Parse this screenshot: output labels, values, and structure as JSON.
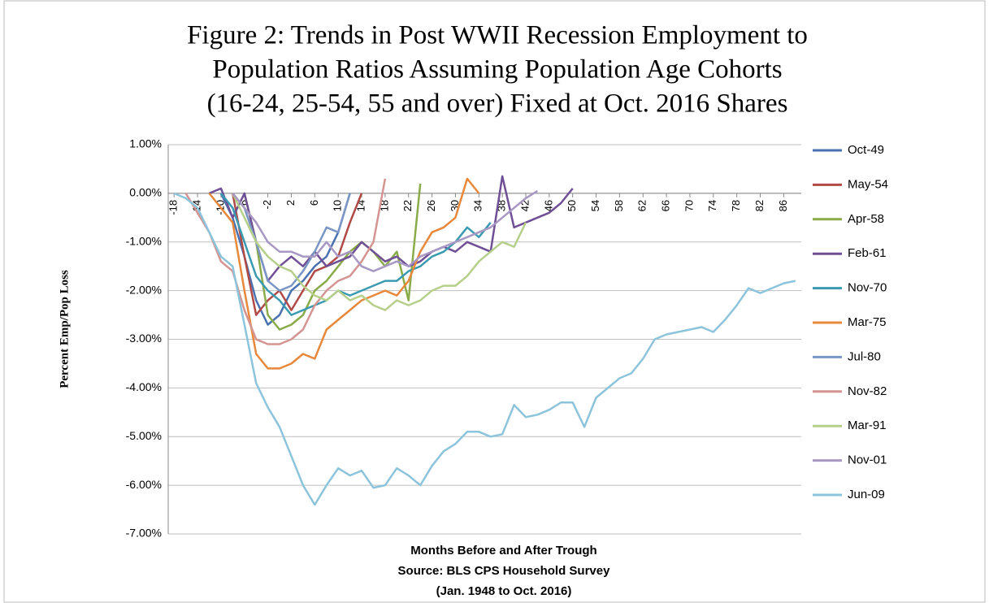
{
  "chart_data": {
    "type": "line",
    "title": [
      "Figure 2: Trends in Post WWII Recession Employment to",
      "Population Ratios Assuming Population Age Cohorts",
      "(16-24, 25-54, 55 and over) Fixed at Oct. 2016 Shares"
    ],
    "x_label": "Months Before and After Trough",
    "source": [
      "Source: BLS CPS Household Survey",
      "(Jan. 1948 to Oct. 2016)"
    ],
    "y_label": "Percent Emp/Pop Loss",
    "xlim": [
      -19,
      89
    ],
    "xticks": [
      -18,
      -14,
      -10,
      -6,
      -2,
      2,
      6,
      10,
      14,
      18,
      22,
      26,
      30,
      34,
      38,
      42,
      46,
      50,
      54,
      58,
      62,
      66,
      70,
      74,
      78,
      82,
      86
    ],
    "ylim": [
      -7,
      1
    ],
    "yticks": [
      {
        "value": 1,
        "label": "1.00%"
      },
      {
        "value": 0,
        "label": "0.00%"
      },
      {
        "value": -1,
        "label": "-1.00%"
      },
      {
        "value": -2,
        "label": "-2.00%"
      },
      {
        "value": -3,
        "label": "-3.00%"
      },
      {
        "value": -4,
        "label": "-4.00%"
      },
      {
        "value": -5,
        "label": "-5.00%"
      },
      {
        "value": -6,
        "label": "-6.00%"
      },
      {
        "value": -7,
        "label": "-7.00%"
      }
    ],
    "grid": true,
    "legend": "right",
    "x": [
      -18,
      -16,
      -14,
      -12,
      -10,
      -8,
      -6,
      -4,
      -2,
      0,
      2,
      4,
      6,
      8,
      10,
      12,
      14,
      16,
      18,
      20,
      22,
      24,
      26,
      28,
      30,
      32,
      34,
      36,
      38,
      40,
      42,
      44,
      46,
      48,
      50,
      52,
      54,
      56,
      58,
      60,
      62,
      64,
      66,
      68,
      70,
      72,
      74,
      76,
      78,
      80,
      82,
      84,
      86,
      88
    ],
    "series": [
      {
        "name": "Oct-49",
        "color": "#4a72b0",
        "values": [
          null,
          null,
          null,
          null,
          0,
          -0.5,
          -1.3,
          -2.2,
          -2.7,
          -2.5,
          -2.0,
          -1.8,
          -1.5,
          -1.3,
          -0.8,
          0.0,
          null,
          null,
          null,
          null,
          null,
          null,
          null,
          null,
          null,
          null,
          null,
          null,
          null,
          null,
          null,
          null,
          null,
          null,
          null,
          null,
          null,
          null,
          null,
          null,
          null,
          null,
          null,
          null,
          null,
          null,
          null,
          null,
          null,
          null,
          null,
          null,
          null,
          null
        ]
      },
      {
        "name": "May-54",
        "color": "#b04a46",
        "values": [
          null,
          null,
          null,
          null,
          null,
          0,
          -1.3,
          -2.5,
          -2.2,
          -2.0,
          -2.4,
          -2.0,
          -1.6,
          -1.5,
          -1.3,
          -0.6,
          0.0,
          null,
          null,
          null,
          null,
          null,
          null,
          null,
          null,
          null,
          null,
          null,
          null,
          null,
          null,
          null,
          null,
          null,
          null,
          null,
          null,
          null,
          null,
          null,
          null,
          null,
          null,
          null,
          null,
          null,
          null,
          null,
          null,
          null,
          null,
          null,
          null,
          null
        ]
      },
      {
        "name": "Apr-58",
        "color": "#8aab4a",
        "values": [
          null,
          null,
          null,
          null,
          null,
          null,
          0,
          -1.0,
          -2.5,
          -2.8,
          -2.7,
          -2.5,
          -2.0,
          -1.8,
          -1.5,
          -1.2,
          -1.0,
          -1.2,
          -1.5,
          -1.2,
          -2.2,
          0.2,
          null,
          null,
          null,
          null,
          null,
          null,
          null,
          null,
          null,
          null,
          null,
          null,
          null,
          null,
          null,
          null,
          null,
          null,
          null,
          null,
          null,
          null,
          null,
          null,
          null,
          null,
          null,
          null,
          null,
          null,
          null,
          null
        ]
      },
      {
        "name": "Feb-61",
        "color": "#6f4f95",
        "values": [
          null,
          null,
          null,
          0,
          0.1,
          -0.5,
          0,
          -1.0,
          -1.8,
          -1.5,
          -1.3,
          -1.5,
          -1.2,
          -1.5,
          -1.4,
          -1.3,
          -1.0,
          -1.2,
          -1.4,
          -1.3,
          -1.5,
          -1.4,
          -1.2,
          -1.1,
          -1.2,
          -1.0,
          -1.1,
          -1.2,
          0.35,
          -0.7,
          -0.6,
          -0.5,
          -0.4,
          -0.2,
          0.1,
          null,
          null,
          null,
          null,
          null,
          null,
          null,
          null,
          null,
          null,
          null,
          null,
          null,
          null,
          null,
          null,
          null,
          null,
          null
        ]
      },
      {
        "name": "Nov-70",
        "color": "#3c9ab0",
        "values": [
          null,
          null,
          null,
          null,
          0,
          -0.3,
          -1.0,
          -1.7,
          -2.0,
          -2.2,
          -2.5,
          -2.4,
          -2.3,
          -2.2,
          -2.0,
          -2.1,
          -2.0,
          -1.9,
          -1.8,
          -1.8,
          -1.6,
          -1.5,
          -1.3,
          -1.2,
          -1.0,
          -0.7,
          -0.9,
          -0.6,
          null,
          null,
          null,
          null,
          null,
          null,
          null,
          null,
          null,
          null,
          null,
          null,
          null,
          null,
          null,
          null,
          null,
          null,
          null,
          null,
          null,
          null,
          null,
          null,
          null,
          null
        ]
      },
      {
        "name": "Mar-75",
        "color": "#e8883a",
        "values": [
          null,
          null,
          null,
          0,
          -0.3,
          -0.6,
          -2.0,
          -3.3,
          -3.6,
          -3.6,
          -3.5,
          -3.3,
          -3.4,
          -2.8,
          -2.6,
          -2.4,
          -2.2,
          -2.1,
          -2.0,
          -2.1,
          -1.8,
          -1.2,
          -0.8,
          -0.7,
          -0.5,
          0.3,
          0.0,
          null,
          null,
          null,
          null,
          null,
          null,
          null,
          null,
          null,
          null,
          null,
          null,
          null,
          null,
          null,
          null,
          null,
          null,
          null,
          null,
          null,
          null,
          null,
          null,
          null,
          null,
          null
        ]
      },
      {
        "name": "Jul-80",
        "color": "#7a96c4",
        "values": [
          null,
          null,
          null,
          null,
          null,
          0,
          -0.3,
          -1.0,
          -1.8,
          -2.0,
          -1.9,
          -1.6,
          -1.2,
          -0.7,
          -0.8,
          0.0,
          null,
          null,
          null,
          null,
          null,
          null,
          null,
          null,
          null,
          null,
          null,
          null,
          null,
          null,
          null,
          null,
          null,
          null,
          null,
          null,
          null,
          null,
          null,
          null,
          null,
          null,
          null,
          null,
          null,
          null,
          null,
          null,
          null,
          null,
          null,
          null,
          null,
          null
        ]
      },
      {
        "name": "Nov-82",
        "color": "#d49492",
        "values": [
          null,
          0,
          -0.4,
          -0.8,
          -1.4,
          -1.6,
          -2.4,
          -3.0,
          -3.1,
          -3.1,
          -3.0,
          -2.8,
          -2.3,
          -2.0,
          -1.8,
          -1.7,
          -1.4,
          -1.0,
          0.3,
          null,
          null,
          null,
          null,
          null,
          null,
          null,
          null,
          null,
          null,
          null,
          null,
          null,
          null,
          null,
          null,
          null,
          null,
          null,
          null,
          null,
          null,
          null,
          null,
          null,
          null,
          null,
          null,
          null,
          null,
          null,
          null,
          null,
          null,
          null
        ]
      },
      {
        "name": "Mar-91",
        "color": "#b6cf8a",
        "values": [
          null,
          null,
          null,
          null,
          null,
          0,
          -0.5,
          -1.0,
          -1.3,
          -1.5,
          -1.6,
          -1.9,
          -2.1,
          -2.2,
          -2.0,
          -2.2,
          -2.1,
          -2.3,
          -2.4,
          -2.2,
          -2.3,
          -2.2,
          -2.0,
          -1.9,
          -1.9,
          -1.7,
          -1.4,
          -1.2,
          -1.0,
          -1.1,
          -0.6,
          null,
          null,
          null,
          null,
          null,
          null,
          null,
          null,
          null,
          null,
          null,
          null,
          null,
          null,
          null,
          null,
          null,
          null,
          null,
          null,
          null,
          null,
          null
        ]
      },
      {
        "name": "Nov-01",
        "color": "#a898c4",
        "values": [
          null,
          null,
          null,
          null,
          null,
          0,
          -0.3,
          -0.6,
          -1.0,
          -1.2,
          -1.2,
          -1.3,
          -1.3,
          -1.0,
          -1.3,
          -1.2,
          -1.5,
          -1.6,
          -1.5,
          -1.4,
          -1.5,
          -1.3,
          -1.2,
          -1.1,
          -1.0,
          -0.9,
          -0.8,
          -0.7,
          -0.5,
          -0.3,
          -0.1,
          0.05,
          null,
          null,
          null,
          null,
          null,
          null,
          null,
          null,
          null,
          null,
          null,
          null,
          null,
          null,
          null,
          null,
          null,
          null,
          null,
          null,
          null,
          null
        ]
      },
      {
        "name": "Jun-09",
        "color": "#8cc4dc",
        "values": [
          0,
          -0.1,
          -0.3,
          -0.8,
          -1.3,
          -1.5,
          -2.7,
          -3.9,
          -4.4,
          -4.8,
          -5.4,
          -6.0,
          -6.4,
          -6.0,
          -5.65,
          -5.8,
          -5.7,
          -6.05,
          -6.0,
          -5.65,
          -5.8,
          -6.0,
          -5.6,
          -5.3,
          -5.15,
          -4.9,
          -4.9,
          -5.0,
          -4.95,
          -4.35,
          -4.6,
          -4.55,
          -4.45,
          -4.3,
          -4.3,
          -4.8,
          -4.2,
          -4.0,
          -3.8,
          -3.7,
          -3.4,
          -3.0,
          -2.9,
          -2.85,
          -2.8,
          -2.75,
          -2.85,
          -2.6,
          -2.3,
          -1.95,
          -2.05,
          -1.95,
          -1.85,
          -1.8
        ]
      }
    ]
  }
}
